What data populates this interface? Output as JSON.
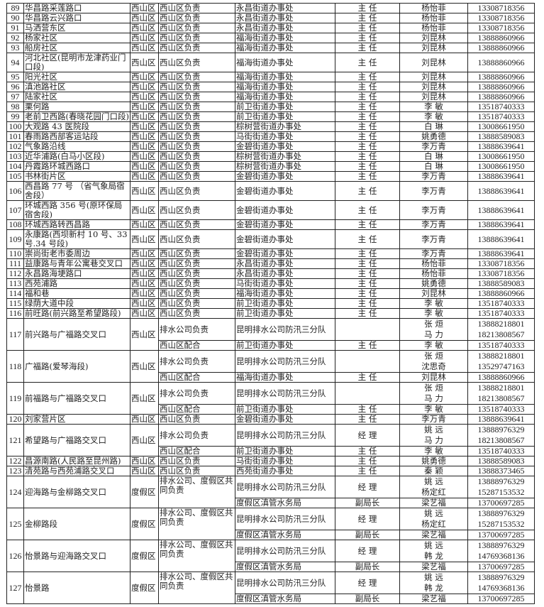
{
  "rows": [
    {
      "no": "89",
      "location": "华昌路采莲路口",
      "district": "西山区",
      "subs": [
        {
          "resp": "西山区负责",
          "unit": "永昌街道办事处",
          "position": "主  任",
          "names": [
            "杨怡菲"
          ],
          "phones": [
            "13308718356"
          ]
        }
      ]
    },
    {
      "no": "90",
      "location": "华昌路云兴路口",
      "district": "西山区",
      "subs": [
        {
          "resp": "西山区负责",
          "unit": "永昌街道办事处",
          "position": "主  任",
          "names": [
            "杨怡菲"
          ],
          "phones": [
            "13308718356"
          ]
        }
      ]
    },
    {
      "no": "91",
      "location": "马洒营东区",
      "district": "西山区",
      "subs": [
        {
          "resp": "西山区负责",
          "unit": "永昌街道办事处",
          "position": "主  任",
          "names": [
            "杨怡菲"
          ],
          "phones": [
            "13308718356"
          ]
        }
      ]
    },
    {
      "no": "92",
      "location": "杨家社区",
      "district": "西山区",
      "subs": [
        {
          "resp": "西山区负责",
          "unit": "福海街道办事处",
          "position": "主  任",
          "names": [
            "刘昆林"
          ],
          "phones": [
            "13888860966"
          ]
        }
      ]
    },
    {
      "no": "93",
      "location": "船房社区",
      "district": "西山区",
      "subs": [
        {
          "resp": "西山区负责",
          "unit": "福海街道办事处",
          "position": "主  任",
          "names": [
            "刘昆林"
          ],
          "phones": [
            "13888860966"
          ]
        }
      ]
    },
    {
      "no": "94",
      "location": "河北社区(昆明市龙津药业门口段)",
      "district": "西山区",
      "subs": [
        {
          "resp": "西山区负责",
          "unit": "福海街道办事处",
          "position": "主  任",
          "names": [
            "刘昆林"
          ],
          "phones": [
            "13888860966"
          ]
        }
      ]
    },
    {
      "no": "95",
      "location": "阳光社区",
      "district": "西山区",
      "subs": [
        {
          "resp": "西山区负责",
          "unit": "福海街道办事处",
          "position": "主  任",
          "names": [
            "刘昆林"
          ],
          "phones": [
            "13888860966"
          ]
        }
      ]
    },
    {
      "no": "96",
      "location": "滇池路社区",
      "district": "西山区",
      "subs": [
        {
          "resp": "西山区负责",
          "unit": "福海街道办事处",
          "position": "主  任",
          "names": [
            "刘昆林"
          ],
          "phones": [
            "13888860966"
          ]
        }
      ]
    },
    {
      "no": "97",
      "location": "陆家社区",
      "district": "西山区",
      "subs": [
        {
          "resp": "西山区负责",
          "unit": "福海街道办事处",
          "position": "主  任",
          "names": [
            "刘昆林"
          ],
          "phones": [
            "13888860966"
          ]
        }
      ]
    },
    {
      "no": "98",
      "location": "栗何路",
      "district": "西山区",
      "subs": [
        {
          "resp": "西山区负责",
          "unit": "前卫街道办事处",
          "position": "主  任",
          "names": [
            "李  敏"
          ],
          "phones": [
            "13518740333"
          ]
        }
      ]
    },
    {
      "no": "99",
      "location": "老前卫西路(春晓花园门口段)",
      "district": "西山区",
      "subs": [
        {
          "resp": "西山区负责",
          "unit": "前卫街道办事处",
          "position": "主  任",
          "names": [
            "李  敏"
          ],
          "phones": [
            "13518740333"
          ]
        }
      ]
    },
    {
      "no": "100",
      "location": "大观路 43 医院段",
      "district": "西山区",
      "subs": [
        {
          "resp": "西山区负责",
          "unit": "棕树营街道办事处",
          "position": "主  任",
          "names": [
            "白  琳"
          ],
          "phones": [
            "13008661950"
          ]
        }
      ]
    },
    {
      "no": "101",
      "location": "春雨路西部客运站段",
      "district": "西山区",
      "subs": [
        {
          "resp": "西山区负责",
          "unit": "马街街道办事处",
          "position": "主  任",
          "names": [
            "姚勇德"
          ],
          "phones": [
            "13888589083"
          ]
        }
      ]
    },
    {
      "no": "102",
      "location": "气象路沿线",
      "district": "西山区",
      "subs": [
        {
          "resp": "西山区负责",
          "unit": "金碧街道办事处",
          "position": "主  任",
          "names": [
            "李万青"
          ],
          "phones": [
            "13888639641"
          ]
        }
      ]
    },
    {
      "no": "103",
      "location": "近华浦路(白马小区段)",
      "district": "西山区",
      "subs": [
        {
          "resp": "西山区负责",
          "unit": "棕树营街道办事处",
          "position": "主  任",
          "names": [
            "白  琳"
          ],
          "phones": [
            "13008661950"
          ]
        }
      ]
    },
    {
      "no": "104",
      "location": "丹霞路环城西路口",
      "district": "西山区",
      "subs": [
        {
          "resp": "西山区负责",
          "unit": "棕树营街道办事处",
          "position": "主  任",
          "names": [
            "白  琳"
          ],
          "phones": [
            "13008661950"
          ]
        }
      ]
    },
    {
      "no": "105",
      "location": "书林街片区",
      "district": "西山区",
      "subs": [
        {
          "resp": "西山区负责",
          "unit": "金碧街道办事处",
          "position": "主  任",
          "names": [
            "李万青"
          ],
          "phones": [
            "13888639641"
          ]
        }
      ]
    },
    {
      "no": "106",
      "location": "西昌路 77 号 （省气象局宿舍段）",
      "district": "西山区",
      "subs": [
        {
          "resp": "西山区负责",
          "unit": "金碧街道办事处",
          "position": "主  任",
          "names": [
            "李万青"
          ],
          "phones": [
            "13888639641"
          ]
        }
      ]
    },
    {
      "no": "107",
      "location": "环城西路 356 号(原环保局宿舍段)",
      "district": "西山区",
      "subs": [
        {
          "resp": "西山区负责",
          "unit": "金碧街道办事处",
          "position": "主  任",
          "names": [
            "李万青"
          ],
          "phones": [
            "13888639641"
          ]
        }
      ]
    },
    {
      "no": "108",
      "location": "环城西路转西昌路",
      "district": "西山区",
      "subs": [
        {
          "resp": "西山区负责",
          "unit": "金碧街道办事处",
          "position": "主  任",
          "names": [
            "李万青"
          ],
          "phones": [
            "13888639641"
          ]
        }
      ]
    },
    {
      "no": "109",
      "location": "永康路(西坝新村 10 号、33 号.34 号段)",
      "district": "西山区",
      "subs": [
        {
          "resp": "西山区负责",
          "unit": "金碧街道办事处",
          "position": "主  任",
          "names": [
            "李万青"
          ],
          "phones": [
            "13888639641"
          ]
        }
      ]
    },
    {
      "no": "110",
      "location": "崇尚街老市委周边",
      "district": "西山区",
      "subs": [
        {
          "resp": "西山区负责",
          "unit": "金碧街道办事处",
          "position": "主  任",
          "names": [
            "李万青"
          ],
          "phones": [
            "13888639641"
          ]
        }
      ]
    },
    {
      "no": "111",
      "location": "益康路与青年公寓巷交叉口",
      "district": "西山区",
      "subs": [
        {
          "resp": "西山区负责",
          "unit": "永昌街道办事处",
          "position": "主  任",
          "names": [
            "杨怡菲"
          ],
          "phones": [
            "13308718356"
          ]
        }
      ]
    },
    {
      "no": "112",
      "location": "永昌路海埂路口",
      "district": "西山区",
      "subs": [
        {
          "resp": "西山区负责",
          "unit": "永昌街道办事处",
          "position": "主  任",
          "names": [
            "杨怡菲"
          ],
          "phones": [
            "13308718356"
          ]
        }
      ]
    },
    {
      "no": "113",
      "location": "西苑浦路",
      "district": "西山区",
      "subs": [
        {
          "resp": "西山区负责",
          "unit": "马街街道办事处",
          "position": "主  任",
          "names": [
            "姚勇德"
          ],
          "phones": [
            "13888589083"
          ]
        }
      ]
    },
    {
      "no": "114",
      "location": "福和巷",
      "district": "西山区",
      "subs": [
        {
          "resp": "西山区负责",
          "unit": "福海街道办事处",
          "position": "主  任",
          "names": [
            "刘昆林"
          ],
          "phones": [
            "13888860966"
          ]
        }
      ]
    },
    {
      "no": "115",
      "location": "绿荫大道中段",
      "district": "西山区",
      "subs": [
        {
          "resp": "西山区负责",
          "unit": "前卫街道办事处",
          "position": "主  任",
          "names": [
            "李  敏"
          ],
          "phones": [
            "13518740333"
          ]
        }
      ]
    },
    {
      "no": "116",
      "location": "前旺路(前兴路至希望路段)",
      "district": "西山区",
      "subs": [
        {
          "resp": "西山区负责",
          "unit": "前卫街道办事处",
          "position": "主  任",
          "names": [
            "李  敏"
          ],
          "phones": [
            "13518740333"
          ]
        }
      ]
    },
    {
      "no": "117",
      "location": "前兴路与广福路交叉口",
      "district": "西山区",
      "subs": [
        {
          "resp": "排水公司负责",
          "unit": "昆明排水公司防汛三分队",
          "position": "",
          "names": [
            "张  烜",
            "马  力"
          ],
          "phones": [
            "13888218801",
            "18213808567"
          ]
        },
        {
          "resp": "西山区配合",
          "unit": "前卫街道办事处",
          "position": "主  任",
          "names": [
            "李  敏"
          ],
          "phones": [
            "13518740333"
          ]
        }
      ]
    },
    {
      "no": "118",
      "location": "广福路(爱琴海段)",
      "district": "西山区",
      "subs": [
        {
          "resp": "排水公司负责",
          "unit": "昆明排水公司防汛三分队",
          "position": "",
          "names": [
            "张  烜",
            "沈思奇"
          ],
          "phones": [
            "13888218801",
            "13529747163"
          ]
        },
        {
          "resp": "西山区配合",
          "unit": "福海街道办事处",
          "position": "主  任",
          "names": [
            "刘昆林"
          ],
          "phones": [
            "13888860966"
          ]
        }
      ]
    },
    {
      "no": "119",
      "location": "前福路与广福路交叉口",
      "district": "西山区",
      "subs": [
        {
          "resp": "排水公司负责",
          "unit": "昆明排水公司防汛三分队",
          "position": "",
          "names": [
            "张  烜",
            "马  力"
          ],
          "phones": [
            "13888218801",
            "18213808567"
          ]
        },
        {
          "resp": "西山区配合",
          "unit": "前卫街道办事处",
          "position": "主  任",
          "names": [
            "李  敏"
          ],
          "phones": [
            "13518740333"
          ]
        }
      ]
    },
    {
      "no": "120",
      "location": "刘家营片区",
      "district": "西山区",
      "subs": [
        {
          "resp": "西山区负责",
          "unit": "金碧街道办事处",
          "position": "主  任",
          "names": [
            "李万青"
          ],
          "phones": [
            "13888639641"
          ]
        }
      ]
    },
    {
      "no": "121",
      "location": "希望路与广福路交叉口",
      "district": "西山区",
      "subs": [
        {
          "resp": "排水公司负责",
          "unit": "昆明排水公司防汛三分队",
          "position": "经  理",
          "names": [
            "姚  远",
            "马  力"
          ],
          "phones": [
            "13888976329",
            "18213808567"
          ]
        },
        {
          "resp": "西山区配合",
          "unit": "前卫街道办事处",
          "position": "主  任",
          "names": [
            "李  敏"
          ],
          "phones": [
            "13518740333"
          ]
        }
      ]
    },
    {
      "no": "122",
      "location": "昌源南路(人民路至昆州路)",
      "district": "西山区",
      "subs": [
        {
          "resp": "西山区负责",
          "unit": "马街街道办事处",
          "position": "主  任",
          "names": [
            "姚勇德"
          ],
          "phones": [
            "13888589083"
          ]
        }
      ]
    },
    {
      "no": "123",
      "location": "清苑路与西苑浦路交叉口",
      "district": "西山区",
      "subs": [
        {
          "resp": "西山区负责",
          "unit": "西苑街道办事处",
          "position": "主  任",
          "names": [
            "秦  颖"
          ],
          "phones": [
            "13888373465"
          ]
        }
      ]
    },
    {
      "no": "124",
      "location": "迎海路与金柳路交叉口",
      "district": "度假区",
      "subs": [
        {
          "resp": "排水公司、度假区共同负责",
          "unit": "昆明排水公司防汛三分队",
          "position": "经  理",
          "names": [
            "姚  远",
            "杨定红"
          ],
          "phones": [
            "13888976329",
            "15287153532"
          ]
        },
        {
          "unit": "度假区滇管水务局",
          "position": "副局长",
          "names": [
            "梁艺福"
          ],
          "phones": [
            "13700697285"
          ]
        }
      ]
    },
    {
      "no": "125",
      "location": "金柳路段",
      "district": "度假区",
      "subs": [
        {
          "resp": "排水公司、度假区共同负责",
          "unit": "昆明排水公司防汛三分队",
          "position": "经  理",
          "names": [
            "姚  远",
            "杨定红"
          ],
          "phones": [
            "13888976329",
            "15287153532"
          ]
        },
        {
          "unit": "度假区滇管水务局",
          "position": "副局长",
          "names": [
            "梁艺福"
          ],
          "phones": [
            "13700697285"
          ]
        }
      ]
    },
    {
      "no": "126",
      "location": "怡景路与迎海路交叉口",
      "district": "度假区",
      "subs": [
        {
          "resp": "排水公司、度假区共同负责",
          "unit": "昆明排水公司防汛三分队",
          "position": "经  理",
          "names": [
            "姚  远",
            "韩  龙"
          ],
          "phones": [
            "13888976329",
            "14769368136"
          ]
        },
        {
          "unit": "度假区滇管水务局",
          "position": "副局长",
          "names": [
            "梁艺福"
          ],
          "phones": [
            "13700697285"
          ]
        }
      ]
    },
    {
      "no": "127",
      "location": "怡景路",
      "district": "度假区",
      "subs": [
        {
          "resp": "排水公司、度假区共同负责",
          "unit": "昆明排水公司防汛三分队",
          "position": "经  理",
          "names": [
            "姚  远",
            "韩  龙"
          ],
          "phones": [
            "13888976329",
            "14769368136"
          ]
        },
        {
          "unit": "度假区滇管水务局",
          "position": "副局长",
          "names": [
            "梁艺福"
          ],
          "phones": [
            "13700697285"
          ]
        }
      ]
    }
  ]
}
